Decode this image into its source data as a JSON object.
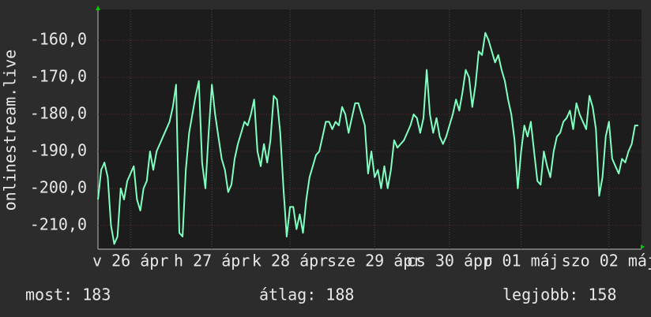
{
  "chart_data": {
    "type": "line",
    "ylabel": "onlinestream.live",
    "ylim": [
      -216.4,
      -151.7
    ],
    "yticks": [
      {
        "value": -160,
        "label": "-160,0"
      },
      {
        "value": -170,
        "label": "-170,0"
      },
      {
        "value": -180,
        "label": "-180,0"
      },
      {
        "value": -190,
        "label": "-190,0"
      },
      {
        "value": -200,
        "label": "-200,0"
      },
      {
        "value": -210,
        "label": "-210,0"
      }
    ],
    "xlim": [
      0,
      167
    ],
    "xticks": [
      {
        "value": 10,
        "label": "v 26 ápr"
      },
      {
        "value": 35,
        "label": "h 27 ápr"
      },
      {
        "value": 59,
        "label": "k 28 ápr"
      },
      {
        "value": 85,
        "label": "sze 29 ápr"
      },
      {
        "value": 108,
        "label": "cs 30 ápr"
      },
      {
        "value": 130,
        "label": "p 01 máj"
      },
      {
        "value": 157,
        "label": "szo 02 máj"
      }
    ],
    "grid": true,
    "x": [
      0,
      1,
      2,
      3,
      4,
      5,
      6,
      7,
      8,
      9,
      10,
      11,
      12,
      13,
      14,
      15,
      16,
      17,
      18,
      19,
      20,
      21,
      22,
      23,
      24,
      25,
      26,
      27,
      28,
      29,
      30,
      31,
      32,
      33,
      34,
      35,
      36,
      37,
      38,
      39,
      40,
      41,
      42,
      43,
      44,
      45,
      46,
      47,
      48,
      49,
      50,
      51,
      52,
      53,
      54,
      55,
      56,
      57,
      58,
      59,
      60,
      61,
      62,
      63,
      64,
      65,
      66,
      67,
      68,
      69,
      70,
      71,
      72,
      73,
      74,
      75,
      76,
      77,
      78,
      79,
      80,
      81,
      82,
      83,
      84,
      85,
      86,
      87,
      88,
      89,
      90,
      91,
      92,
      93,
      94,
      95,
      96,
      97,
      98,
      99,
      100,
      101,
      102,
      103,
      104,
      105,
      106,
      107,
      108,
      109,
      110,
      111,
      112,
      113,
      114,
      115,
      116,
      117,
      118,
      119,
      120,
      121,
      122,
      123,
      124,
      125,
      126,
      127,
      128,
      129,
      130,
      131,
      132,
      133,
      134,
      135,
      136,
      137,
      138,
      139,
      140,
      141,
      142,
      143,
      144,
      145,
      146,
      147,
      148,
      149,
      150,
      151,
      152,
      153,
      154,
      155,
      156,
      157,
      158,
      159,
      160,
      161,
      162,
      163,
      164,
      165,
      166
    ],
    "series": [
      {
        "color": "#80ffc0",
        "values": [
          -203,
          -195,
          -193,
          -197,
          -210,
          -215,
          -213,
          -200,
          -203,
          -198,
          -196,
          -194,
          -203,
          -206,
          -200,
          -198,
          -190,
          -195,
          -190,
          -188,
          -186,
          -184,
          -182,
          -178,
          -172,
          -212,
          -213,
          -195,
          -185,
          -180,
          -175,
          -171,
          -193,
          -200,
          -185,
          -172,
          -180,
          -186,
          -192,
          -195,
          -201,
          -199,
          -192,
          -188,
          -185,
          -182,
          -183,
          -180,
          -176,
          -190,
          -194,
          -188,
          -193,
          -187,
          -175,
          -176,
          -185,
          -200,
          -213,
          -205,
          -205,
          -211,
          -207,
          -212,
          -203,
          -197,
          -194,
          -191,
          -190,
          -186,
          -182,
          -182,
          -184,
          -182,
          -183,
          -178,
          -180,
          -185,
          -181,
          -177,
          -177,
          -180,
          -183,
          -196,
          -190,
          -197,
          -195,
          -200,
          -194,
          -200,
          -195,
          -187,
          -189,
          -188,
          -187,
          -185,
          -183,
          -180,
          -181,
          -185,
          -181,
          -168,
          -180,
          -185,
          -181,
          -186,
          -188,
          -186,
          -183,
          -180,
          -176,
          -179,
          -174,
          -168,
          -170,
          -178,
          -172,
          -163,
          -164,
          -158,
          -160,
          -163,
          -166,
          -164,
          -168,
          -171,
          -176,
          -180,
          -187,
          -200,
          -190,
          -183,
          -186,
          -182,
          -190,
          -198,
          -199,
          -190,
          -194,
          -197,
          -190,
          -186,
          -185,
          -182,
          -181,
          -179,
          -184,
          -177,
          -180,
          -182,
          -184,
          -175,
          -178,
          -184,
          -202,
          -197,
          -186,
          -182,
          -192,
          -194,
          -196,
          -192,
          -193,
          -190,
          -188,
          -183,
          -183
        ]
      }
    ],
    "stats": [
      "most: 183",
      "átlag: 188",
      "legjobb: 158"
    ]
  }
}
